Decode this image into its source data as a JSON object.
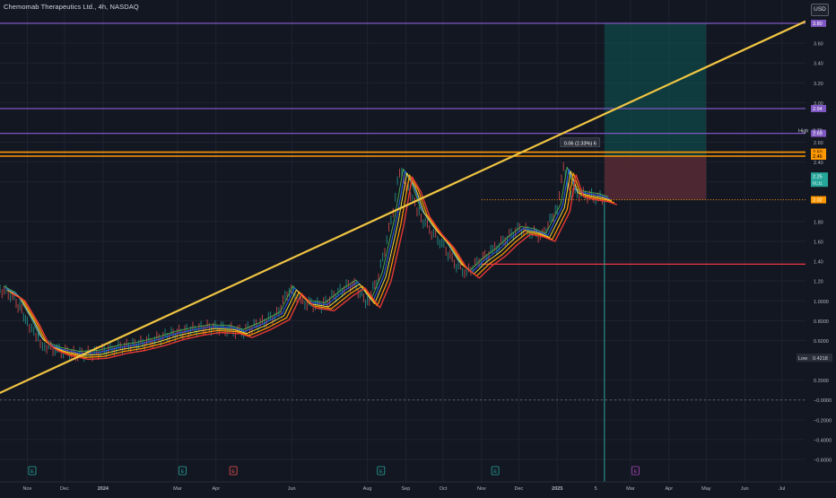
{
  "header": {
    "symbol_title": "Chemomab Therapeutics Ltd., 4h, NASDAQ",
    "currency": "USD"
  },
  "colors": {
    "background": "#131722",
    "grid": "#1f2330",
    "trendline": "#f0c542",
    "horizontal_purple": "#7e57c2",
    "horizontal_orange": "#ff9800",
    "support_red": "#f23645",
    "profit_zone": "#0d5a56",
    "stop_zone": "#5c2430",
    "candle_up": "#26a69a",
    "candle_down": "#ef5350",
    "ma_orange": "#ff9800",
    "ma_red": "#e53935",
    "ma_yellow": "#ffeb3b",
    "ma_green": "#4caf50",
    "ma_blue": "#2962ff",
    "last_price_tag": "#ff9800"
  },
  "chart_data": {
    "type": "line",
    "title": "Chemomab Therapeutics Ltd., 4h, NASDAQ",
    "ylabel": "USD",
    "ylim": [
      -0.6,
      3.8
    ],
    "y_ticks": [
      {
        "value": 3.6,
        "label": "3.60"
      },
      {
        "value": 3.4,
        "label": "3.40"
      },
      {
        "value": 3.2,
        "label": "3.20"
      },
      {
        "value": 3.0,
        "label": "3.00"
      },
      {
        "value": 2.6,
        "label": "2.60"
      },
      {
        "value": 2.4,
        "label": "2.40"
      },
      {
        "value": 2.2,
        "label": "2.20"
      },
      {
        "value": 1.8,
        "label": "1.80"
      },
      {
        "value": 1.6,
        "label": "1.60"
      },
      {
        "value": 1.4,
        "label": "1.40"
      },
      {
        "value": 1.2,
        "label": "1.20"
      },
      {
        "value": 1.0,
        "label": "1.0000"
      },
      {
        "value": 0.8,
        "label": "0.8000"
      },
      {
        "value": 0.6,
        "label": "0.6000"
      },
      {
        "value": 0.2,
        "label": "0.2000"
      },
      {
        "value": 0.0,
        "label": "−0.0000"
      },
      {
        "value": -0.2,
        "label": "−0.2000"
      },
      {
        "value": -0.4,
        "label": "−0.4000"
      },
      {
        "value": -0.6,
        "label": "−0.6000"
      }
    ],
    "x_ticks": [
      {
        "date": "2023-11",
        "label": "Nov"
      },
      {
        "date": "2023-12",
        "label": "Dec"
      },
      {
        "date": "2024-01",
        "label": "2024"
      },
      {
        "date": "2024-03",
        "label": "Mar"
      },
      {
        "date": "2024-04",
        "label": "Apr"
      },
      {
        "date": "2024-06",
        "label": "Jun"
      },
      {
        "date": "2024-08",
        "label": "Aug"
      },
      {
        "date": "2024-09",
        "label": "Sep"
      },
      {
        "date": "2024-10",
        "label": "Oct"
      },
      {
        "date": "2024-11",
        "label": "Nov"
      },
      {
        "date": "2024-12",
        "label": "Dec"
      },
      {
        "date": "2025-01",
        "label": "2025"
      },
      {
        "date": "2025-02",
        "label": "5"
      },
      {
        "date": "2025-03",
        "label": "Mar"
      },
      {
        "date": "2025-04",
        "label": "Apr"
      },
      {
        "date": "2025-05",
        "label": "May"
      },
      {
        "date": "2025-06",
        "label": "Jun"
      },
      {
        "date": "2025-07",
        "label": "Jul"
      }
    ],
    "price_path": [
      [
        "2023-10-10",
        1.12
      ],
      [
        "2023-10-20",
        1.05
      ],
      [
        "2023-11-01",
        0.8
      ],
      [
        "2023-11-08",
        0.62
      ],
      [
        "2023-11-15",
        0.55
      ],
      [
        "2023-11-25",
        0.5
      ],
      [
        "2023-12-10",
        0.46
      ],
      [
        "2023-12-25",
        0.47
      ],
      [
        "2024-01-10",
        0.52
      ],
      [
        "2024-01-25",
        0.55
      ],
      [
        "2024-02-10",
        0.6
      ],
      [
        "2024-02-25",
        0.66
      ],
      [
        "2024-03-10",
        0.7
      ],
      [
        "2024-03-25",
        0.73
      ],
      [
        "2024-04-10",
        0.72
      ],
      [
        "2024-04-20",
        0.68
      ],
      [
        "2024-05-05",
        0.76
      ],
      [
        "2024-05-20",
        0.86
      ],
      [
        "2024-05-30",
        1.12
      ],
      [
        "2024-06-10",
        0.98
      ],
      [
        "2024-06-25",
        0.95
      ],
      [
        "2024-07-10",
        1.1
      ],
      [
        "2024-07-20",
        1.18
      ],
      [
        "2024-08-01",
        0.98
      ],
      [
        "2024-08-10",
        1.25
      ],
      [
        "2024-08-20",
        1.8
      ],
      [
        "2024-08-27",
        2.3
      ],
      [
        "2024-09-03",
        2.15
      ],
      [
        "2024-09-10",
        1.9
      ],
      [
        "2024-09-20",
        1.72
      ],
      [
        "2024-09-30",
        1.58
      ],
      [
        "2024-10-10",
        1.38
      ],
      [
        "2024-10-20",
        1.28
      ],
      [
        "2024-10-30",
        1.4
      ],
      [
        "2024-11-10",
        1.5
      ],
      [
        "2024-11-20",
        1.62
      ],
      [
        "2024-11-30",
        1.72
      ],
      [
        "2024-12-10",
        1.7
      ],
      [
        "2024-12-20",
        1.65
      ],
      [
        "2025-01-01",
        1.95
      ],
      [
        "2025-01-06",
        2.32
      ],
      [
        "2025-01-12",
        2.1
      ],
      [
        "2025-01-22",
        2.07
      ],
      [
        "2025-02-01",
        2.05
      ],
      [
        "2025-02-08",
        2.02
      ]
    ],
    "trendline": {
      "from": [
        "2023-10-01",
        0.02
      ],
      "to": [
        "2025-07-20",
        3.82
      ]
    },
    "horizontal_levels": [
      {
        "value": 3.8,
        "label": "3.80",
        "color": "purple"
      },
      {
        "value": 2.94,
        "label": "2.94",
        "color": "purple"
      },
      {
        "value": 2.69,
        "label": "2.69",
        "color": "purple"
      },
      {
        "value": 2.5,
        "label": "2.50",
        "color": "orange"
      },
      {
        "value": 2.46,
        "label": "2.46",
        "color": "orange"
      }
    ],
    "high": {
      "label": "High",
      "value": "2.72"
    },
    "low": {
      "label": "Low",
      "value": "0.4218"
    },
    "last_price": {
      "value": 2.02,
      "label": "2.02"
    },
    "countdown_tag": {
      "value": 2.25,
      "label": "2.25",
      "sub": "01:11"
    },
    "measure_label": "0.06 (2.33%) 6",
    "support_level": {
      "value": 1.37
    },
    "position": {
      "entry": 2.02,
      "target": 3.8,
      "stop": 2.46,
      "start": "2025-02-08",
      "end": "2025-05-01"
    },
    "event_markers": [
      {
        "date": "2023-11-05",
        "label": "E"
      },
      {
        "date": "2024-03-05",
        "label": "E"
      },
      {
        "date": "2024-04-15",
        "label": "E"
      },
      {
        "date": "2024-08-12",
        "label": "E"
      },
      {
        "date": "2024-11-12",
        "label": "E"
      },
      {
        "date": "2025-03-05",
        "label": "E"
      }
    ]
  }
}
